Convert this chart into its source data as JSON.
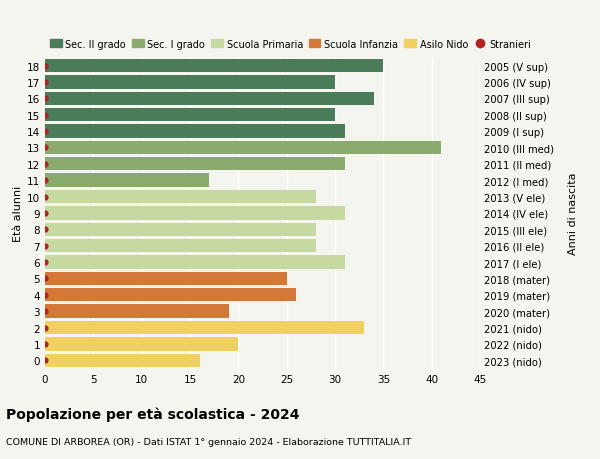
{
  "ages": [
    18,
    17,
    16,
    15,
    14,
    13,
    12,
    11,
    10,
    9,
    8,
    7,
    6,
    5,
    4,
    3,
    2,
    1,
    0
  ],
  "years": [
    "2005 (V sup)",
    "2006 (IV sup)",
    "2007 (III sup)",
    "2008 (II sup)",
    "2009 (I sup)",
    "2010 (III med)",
    "2011 (II med)",
    "2012 (I med)",
    "2013 (V ele)",
    "2014 (IV ele)",
    "2015 (III ele)",
    "2016 (II ele)",
    "2017 (I ele)",
    "2018 (mater)",
    "2019 (mater)",
    "2020 (mater)",
    "2021 (nido)",
    "2022 (nido)",
    "2023 (nido)"
  ],
  "values": [
    35,
    30,
    34,
    30,
    31,
    41,
    31,
    17,
    28,
    31,
    28,
    28,
    31,
    25,
    26,
    19,
    33,
    20,
    16
  ],
  "bar_colors": [
    "#4a7c59",
    "#4a7c59",
    "#4a7c59",
    "#4a7c59",
    "#4a7c59",
    "#8aaa6e",
    "#8aaa6e",
    "#8aaa6e",
    "#c5d9a0",
    "#c5d9a0",
    "#c5d9a0",
    "#c5d9a0",
    "#c5d9a0",
    "#d4783a",
    "#d4783a",
    "#d4783a",
    "#f0d060",
    "#f0d060",
    "#f0d060"
  ],
  "stranieri_dot_color": "#b22222",
  "bg_color": "#f5f5f0",
  "grid_color": "#ffffff",
  "xlim": [
    0,
    45
  ],
  "xticks": [
    0,
    5,
    10,
    15,
    20,
    25,
    30,
    35,
    40,
    45
  ],
  "ylabel_left": "Età alunni",
  "ylabel_right": "Anni di nascita",
  "title": "Popolazione per età scolastica - 2024",
  "subtitle": "COMUNE DI ARBOREA (OR) - Dati ISTAT 1° gennaio 2024 - Elaborazione TUTTITALIA.IT",
  "legend_labels": [
    "Sec. II grado",
    "Sec. I grado",
    "Scuola Primaria",
    "Scuola Infanzia",
    "Asilo Nido",
    "Stranieri"
  ],
  "legend_colors": [
    "#4a7c59",
    "#8aaa6e",
    "#c5d9a0",
    "#d4783a",
    "#f0d060",
    "#b22222"
  ],
  "bar_height": 0.82
}
